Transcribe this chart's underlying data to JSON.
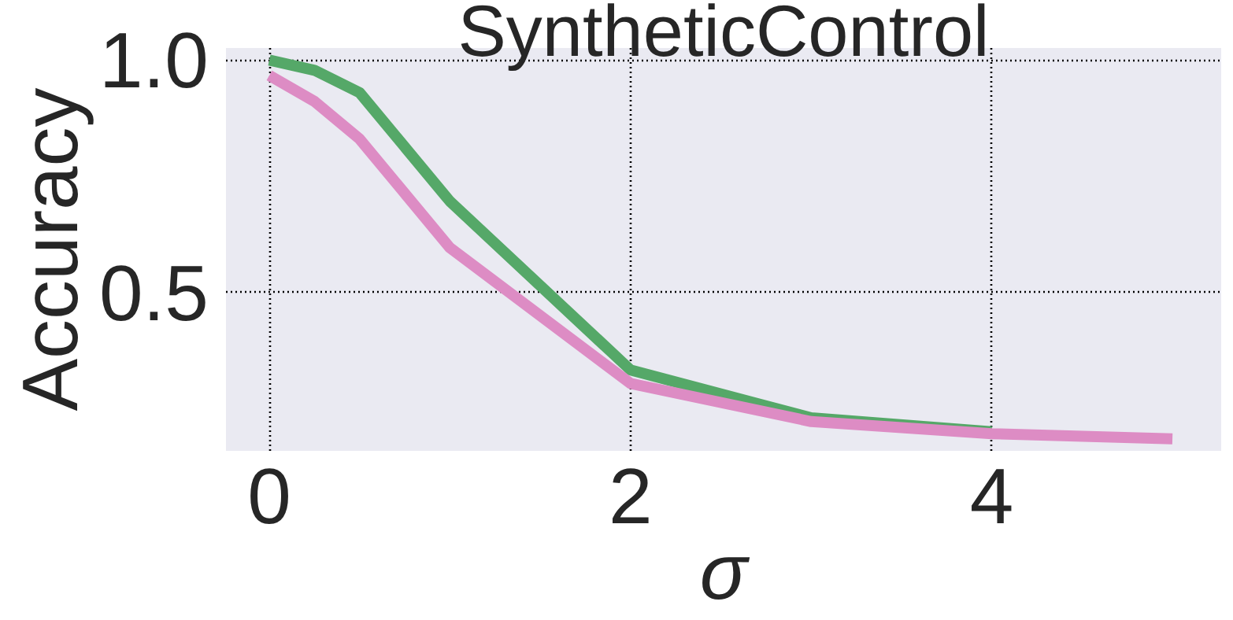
{
  "chart_data": {
    "type": "line",
    "title": "SyntheticControl",
    "xlabel": "σ",
    "ylabel": "Accuracy",
    "x": [
      0,
      0.25,
      0.5,
      1,
      2,
      3,
      4,
      5
    ],
    "series": [
      {
        "color": "#55a868",
        "values": [
          1.0,
          0.978,
          0.93,
          0.696,
          0.333,
          0.23,
          0.2,
          null
        ]
      },
      {
        "color": "#dd8cc4",
        "values": [
          0.967,
          0.911,
          0.83,
          0.596,
          0.304,
          0.222,
          0.196,
          0.185
        ]
      }
    ],
    "xlim": [
      -0.24,
      5.27
    ],
    "ylim": [
      0.159,
      1.026
    ],
    "xticks": [
      0,
      2,
      4
    ],
    "yticks": [
      {
        "value": 0.5,
        "label": "0.5"
      },
      {
        "value": 1.0,
        "label": "1.0"
      }
    ],
    "grid": true,
    "line_style": "solid"
  }
}
